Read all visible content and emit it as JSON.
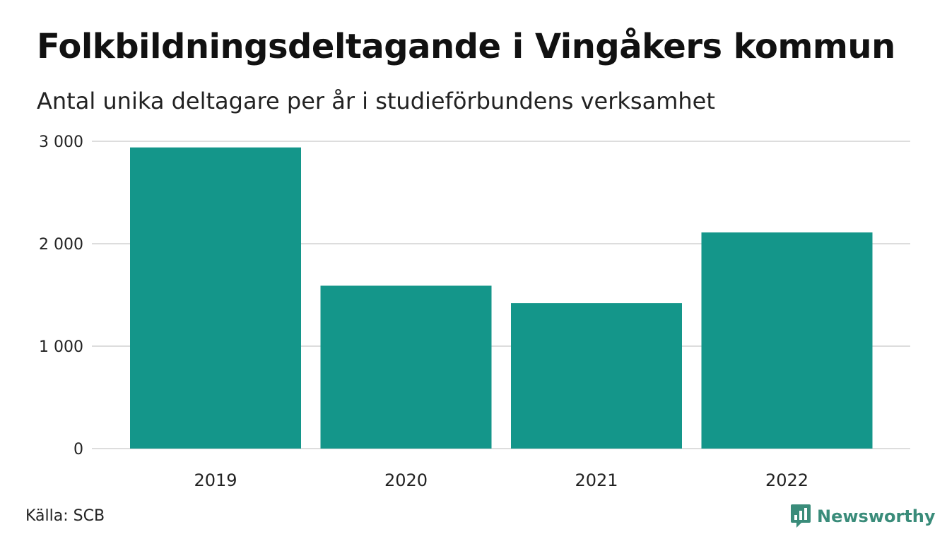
{
  "title": "Folkbildningsdeltagande i Vingåkers kommun",
  "subtitle": "Antal unika deltagare per år i studieförbundens verksamhet",
  "source": "Källa: SCB",
  "brand": {
    "name": "Newsworthy",
    "icon": "newsworthy-logo-icon",
    "color": "#3a8c7a"
  },
  "chart_data": {
    "type": "bar",
    "categories": [
      "2019",
      "2020",
      "2021",
      "2022"
    ],
    "values": [
      2940,
      1590,
      1420,
      2110
    ],
    "ylim": [
      0,
      3000
    ],
    "yticks": [
      0,
      1000,
      2000,
      3000
    ],
    "ytick_labels": [
      "0",
      "1 000",
      "2 000",
      "3 000"
    ],
    "grid": true,
    "bar_color": "#14968a",
    "grid_color": "#dddddd"
  }
}
